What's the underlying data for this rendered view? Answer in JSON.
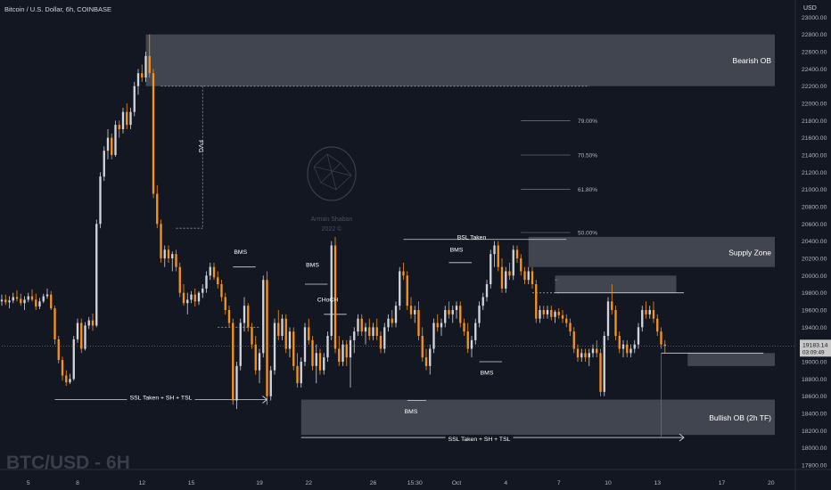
{
  "header": {
    "symbol_title": "Bitcoin / U.S. Dollar, 6h, COINBASE",
    "currency": "USD"
  },
  "watermark": {
    "symbol_label": "BTC/USD - 6H",
    "author": "Arman Shaban",
    "year": "2022 ©"
  },
  "last_price": {
    "value": "19183.14",
    "countdown": "03:09:49"
  },
  "colors": {
    "background": "#131722",
    "up": "#d1d4dc",
    "down": "#f7931a",
    "zone": "#4a4d57",
    "text": "#b2b5be",
    "price_tag": "#c8c8c8"
  },
  "chart_data": {
    "type": "candlestick",
    "title": "Bitcoin / U.S. Dollar, 6h, COINBASE",
    "y_axis": {
      "min": 17800,
      "max": 23200,
      "ticks": [
        "23000.00",
        "22800.00",
        "22600.00",
        "22400.00",
        "22200.00",
        "22000.00",
        "21800.00",
        "21600.00",
        "21400.00",
        "21200.00",
        "21000.00",
        "20800.00",
        "20600.00",
        "20400.00",
        "20200.00",
        "20000.00",
        "19800.00",
        "19600.00",
        "19400.00",
        "19200.00",
        "19000.00",
        "18800.00",
        "18600.00",
        "18400.00",
        "18200.00",
        "18000.00",
        "17800.00"
      ]
    },
    "x_axis": {
      "index_range": [
        0,
        200
      ],
      "ticks": [
        {
          "label": "5",
          "i": 7
        },
        {
          "label": "8",
          "i": 20
        },
        {
          "label": "12",
          "i": 37
        },
        {
          "label": "15",
          "i": 50
        },
        {
          "label": "19",
          "i": 68
        },
        {
          "label": "22",
          "i": 81
        },
        {
          "label": "26",
          "i": 98
        },
        {
          "label": "15:30",
          "i": 109
        },
        {
          "label": "Oct",
          "i": 120
        },
        {
          "label": "4",
          "i": 133
        },
        {
          "label": "7",
          "i": 147
        },
        {
          "label": "10",
          "i": 160
        },
        {
          "label": "13",
          "i": 173
        },
        {
          "label": "17",
          "i": 190
        },
        {
          "label": "20",
          "i": 203
        }
      ]
    },
    "candles": [
      [
        19700,
        19780,
        19650,
        19720
      ],
      [
        19720,
        19780,
        19660,
        19690
      ],
      [
        19690,
        19760,
        19620,
        19710
      ],
      [
        19710,
        19800,
        19680,
        19750
      ],
      [
        19750,
        19830,
        19700,
        19730
      ],
      [
        19730,
        19790,
        19650,
        19680
      ],
      [
        19680,
        19760,
        19600,
        19720
      ],
      [
        19720,
        19800,
        19690,
        19760
      ],
      [
        19760,
        19840,
        19700,
        19720
      ],
      [
        19720,
        19790,
        19600,
        19640
      ],
      [
        19640,
        19740,
        19610,
        19700
      ],
      [
        19700,
        19790,
        19680,
        19760
      ],
      [
        19760,
        19850,
        19730,
        19780
      ],
      [
        19780,
        19820,
        19600,
        19620
      ],
      [
        19620,
        19650,
        19200,
        19260
      ],
      [
        19260,
        19300,
        18980,
        19020
      ],
      [
        19020,
        19060,
        18780,
        18840
      ],
      [
        18840,
        18900,
        18720,
        18760
      ],
      [
        18760,
        18860,
        18740,
        18800
      ],
      [
        18800,
        19300,
        18780,
        19260
      ],
      [
        19260,
        19500,
        19220,
        19450
      ],
      [
        19450,
        19500,
        19100,
        19150
      ],
      [
        19150,
        19460,
        19130,
        19420
      ],
      [
        19420,
        19520,
        19380,
        19480
      ],
      [
        19480,
        19560,
        19360,
        19420
      ],
      [
        19420,
        20650,
        19400,
        20600
      ],
      [
        20600,
        21200,
        20550,
        21150
      ],
      [
        21150,
        21500,
        21100,
        21450
      ],
      [
        21450,
        21700,
        21350,
        21600
      ],
      [
        21600,
        21650,
        21350,
        21400
      ],
      [
        21400,
        21800,
        21380,
        21750
      ],
      [
        21750,
        21800,
        21600,
        21700
      ],
      [
        21700,
        21950,
        21650,
        21900
      ],
      [
        21900,
        22000,
        21700,
        21750
      ],
      [
        21750,
        21950,
        21700,
        21900
      ],
      [
        21900,
        22250,
        21850,
        22200
      ],
      [
        22200,
        22400,
        22100,
        22350
      ],
      [
        22350,
        22450,
        22250,
        22300
      ],
      [
        22300,
        22600,
        22250,
        22550
      ],
      [
        22550,
        22800,
        22300,
        22350
      ],
      [
        22350,
        22400,
        20900,
        20950
      ],
      [
        20950,
        21050,
        20550,
        20600
      ],
      [
        20600,
        20650,
        20150,
        20200
      ],
      [
        20200,
        20350,
        20100,
        20300
      ],
      [
        20300,
        20350,
        20150,
        20200
      ],
      [
        20200,
        20280,
        20050,
        20250
      ],
      [
        20250,
        20300,
        20050,
        20100
      ],
      [
        20100,
        20150,
        19750,
        19800
      ],
      [
        19800,
        19900,
        19650,
        19680
      ],
      [
        19680,
        19800,
        19550,
        19720
      ],
      [
        19720,
        19820,
        19680,
        19780
      ],
      [
        19780,
        19850,
        19640,
        19700
      ],
      [
        19700,
        19820,
        19660,
        19800
      ],
      [
        19800,
        19900,
        19740,
        19850
      ],
      [
        19850,
        20050,
        19800,
        20000
      ],
      [
        20000,
        20150,
        19950,
        20100
      ],
      [
        20100,
        20150,
        19950,
        19980
      ],
      [
        19980,
        20050,
        19850,
        19900
      ],
      [
        19900,
        19950,
        19700,
        19750
      ],
      [
        19750,
        19800,
        19550,
        19600
      ],
      [
        19600,
        19650,
        19400,
        19450
      ],
      [
        19450,
        19500,
        18500,
        18550
      ],
      [
        18550,
        19000,
        18450,
        18950
      ],
      [
        18950,
        19500,
        18900,
        19450
      ],
      [
        19450,
        19750,
        19350,
        19650
      ],
      [
        19650,
        19680,
        19350,
        19400
      ],
      [
        19400,
        19450,
        19150,
        19200
      ],
      [
        19200,
        19300,
        18850,
        18900
      ],
      [
        18900,
        19150,
        18750,
        19100
      ],
      [
        19100,
        20000,
        19050,
        19950
      ],
      [
        19950,
        20050,
        18500,
        18600
      ],
      [
        18600,
        18950,
        18550,
        18900
      ],
      [
        18900,
        19500,
        18850,
        19450
      ],
      [
        19450,
        19600,
        19250,
        19300
      ],
      [
        19300,
        19550,
        19250,
        19500
      ],
      [
        19500,
        19550,
        19100,
        19150
      ],
      [
        19150,
        19400,
        19050,
        19350
      ],
      [
        19350,
        19400,
        18900,
        18950
      ],
      [
        18950,
        19100,
        18700,
        18750
      ],
      [
        18750,
        19050,
        18700,
        19000
      ],
      [
        19000,
        19450,
        18950,
        19400
      ],
      [
        19400,
        19500,
        19200,
        19250
      ],
      [
        19250,
        19300,
        18900,
        18950
      ],
      [
        18950,
        19200,
        18750,
        19100
      ],
      [
        19100,
        19150,
        18850,
        18900
      ],
      [
        18900,
        19100,
        18850,
        19050
      ],
      [
        19050,
        19350,
        19000,
        19300
      ],
      [
        19300,
        20400,
        19250,
        20350
      ],
      [
        20350,
        20450,
        19100,
        19150
      ],
      [
        19150,
        19300,
        18950,
        19000
      ],
      [
        19000,
        19250,
        18950,
        19200
      ],
      [
        19200,
        19250,
        18950,
        19050
      ],
      [
        19050,
        19300,
        18700,
        19250
      ],
      [
        19250,
        19400,
        19100,
        19350
      ],
      [
        19350,
        19550,
        19300,
        19500
      ],
      [
        19500,
        19550,
        19300,
        19350
      ],
      [
        19350,
        19450,
        19200,
        19400
      ],
      [
        19400,
        19500,
        19250,
        19300
      ],
      [
        19300,
        19450,
        19250,
        19400
      ],
      [
        19400,
        19500,
        19250,
        19300
      ],
      [
        19300,
        19350,
        19100,
        19150
      ],
      [
        19150,
        19450,
        19100,
        19400
      ],
      [
        19400,
        19550,
        19350,
        19500
      ],
      [
        19500,
        19600,
        19400,
        19450
      ],
      [
        19450,
        19700,
        19400,
        19650
      ],
      [
        19650,
        20100,
        19600,
        20050
      ],
      [
        20050,
        20150,
        19950,
        20000
      ],
      [
        20000,
        20050,
        19600,
        19650
      ],
      [
        19650,
        19750,
        19500,
        19550
      ],
      [
        19550,
        19650,
        19450,
        19600
      ],
      [
        19600,
        19700,
        19250,
        19300
      ],
      [
        19300,
        19400,
        19000,
        19050
      ],
      [
        19050,
        19150,
        18900,
        18950
      ],
      [
        18950,
        19200,
        18850,
        19150
      ],
      [
        19150,
        19500,
        19100,
        19450
      ],
      [
        19450,
        19550,
        19350,
        19400
      ],
      [
        19400,
        19500,
        19300,
        19450
      ],
      [
        19450,
        19650,
        19400,
        19600
      ],
      [
        19600,
        19700,
        19500,
        19550
      ],
      [
        19550,
        19650,
        19450,
        19600
      ],
      [
        19600,
        19700,
        19500,
        19650
      ],
      [
        19650,
        19700,
        19400,
        19450
      ],
      [
        19450,
        19500,
        19300,
        19350
      ],
      [
        19350,
        19450,
        19100,
        19150
      ],
      [
        19150,
        19300,
        19050,
        19250
      ],
      [
        19250,
        19500,
        19200,
        19450
      ],
      [
        19450,
        19700,
        19400,
        19650
      ],
      [
        19650,
        19800,
        19600,
        19750
      ],
      [
        19750,
        19950,
        19700,
        19900
      ],
      [
        19900,
        20300,
        19850,
        20250
      ],
      [
        20250,
        20400,
        20100,
        20350
      ],
      [
        20350,
        20400,
        20050,
        20100
      ],
      [
        20100,
        20200,
        19800,
        19850
      ],
      [
        19850,
        20100,
        19800,
        20050
      ],
      [
        20050,
        20150,
        19950,
        20000
      ],
      [
        20000,
        20350,
        19950,
        20300
      ],
      [
        20300,
        20350,
        20150,
        20200
      ],
      [
        20200,
        20250,
        20000,
        20050
      ],
      [
        20050,
        20100,
        19900,
        19950
      ],
      [
        19950,
        20100,
        19900,
        20050
      ],
      [
        20050,
        20100,
        19850,
        19900
      ],
      [
        19900,
        19950,
        19450,
        19500
      ],
      [
        19500,
        19650,
        19450,
        19600
      ],
      [
        19600,
        19650,
        19500,
        19550
      ],
      [
        19550,
        19650,
        19500,
        19600
      ],
      [
        19600,
        19650,
        19480,
        19520
      ],
      [
        19520,
        19600,
        19450,
        19580
      ],
      [
        19580,
        19620,
        19500,
        19540
      ],
      [
        19540,
        19600,
        19450,
        19500
      ],
      [
        19500,
        19550,
        19400,
        19450
      ],
      [
        19450,
        19500,
        19300,
        19350
      ],
      [
        19350,
        19400,
        19100,
        19150
      ],
      [
        19150,
        19200,
        19000,
        19050
      ],
      [
        19050,
        19150,
        19000,
        19100
      ],
      [
        19100,
        19150,
        19000,
        19050
      ],
      [
        19050,
        19150,
        18950,
        19100
      ],
      [
        19100,
        19200,
        19050,
        19150
      ],
      [
        19150,
        19250,
        19050,
        19100
      ],
      [
        19100,
        19150,
        18600,
        18650
      ],
      [
        18650,
        19350,
        18600,
        19300
      ],
      [
        19300,
        19750,
        19250,
        19700
      ],
      [
        19700,
        19900,
        19550,
        19600
      ],
      [
        19600,
        19650,
        19250,
        19300
      ],
      [
        19300,
        19350,
        19100,
        19150
      ],
      [
        19150,
        19250,
        19050,
        19200
      ],
      [
        19200,
        19250,
        19050,
        19100
      ],
      [
        19100,
        19200,
        19050,
        19150
      ],
      [
        19150,
        19250,
        19100,
        19200
      ],
      [
        19200,
        19450,
        19150,
        19400
      ],
      [
        19400,
        19650,
        19350,
        19600
      ],
      [
        19600,
        19700,
        19500,
        19550
      ],
      [
        19550,
        19650,
        19500,
        19600
      ],
      [
        19600,
        19700,
        19450,
        19500
      ],
      [
        19500,
        19550,
        19300,
        19350
      ],
      [
        19350,
        19400,
        19150,
        19200
      ],
      [
        19200,
        19250,
        19100,
        19183
      ]
    ],
    "zones": [
      {
        "label": "Bearish OB",
        "top": 22800,
        "bottom": 22200,
        "from": 38,
        "to": 204
      },
      {
        "label": "Supply Zone",
        "top": 20450,
        "bottom": 20100,
        "from": 139,
        "to": 204
      },
      {
        "label": "",
        "top": 20000,
        "bottom": 19800,
        "from": 146,
        "to": 178
      },
      {
        "label": "",
        "top": 19100,
        "bottom": 18950,
        "from": 181,
        "to": 204
      },
      {
        "label": "Bullish OB (2h TF)",
        "top": 18560,
        "bottom": 18150,
        "from": 79,
        "to": 204
      }
    ],
    "annotations": [
      {
        "text": "FVG",
        "i": 52,
        "y": 21500
      },
      {
        "text": "BMS",
        "i": 63,
        "y": 20250
      },
      {
        "text": "BMS",
        "i": 82,
        "y": 20100
      },
      {
        "text": "CHoCH",
        "i": 86,
        "y": 19700
      },
      {
        "text": "BMS",
        "i": 120,
        "y": 20280
      },
      {
        "text": "BMS",
        "i": 128,
        "y": 18850
      },
      {
        "text": "BMS",
        "i": 108,
        "y": 18400
      },
      {
        "text": "BSL Taken",
        "i": 124,
        "y": 20420
      },
      {
        "text": "SSL Taken + SH + TSL",
        "i": 42,
        "y": 18560
      },
      {
        "text": "SSL Taken + SH + TSL",
        "i": 126,
        "y": 18080
      }
    ],
    "fib_levels": [
      {
        "label": "79.00%",
        "value": 21800
      },
      {
        "label": "70.50%",
        "value": 21400
      },
      {
        "label": "61.80%",
        "value": 21000
      },
      {
        "label": "50.00%",
        "value": 20500
      }
    ]
  }
}
